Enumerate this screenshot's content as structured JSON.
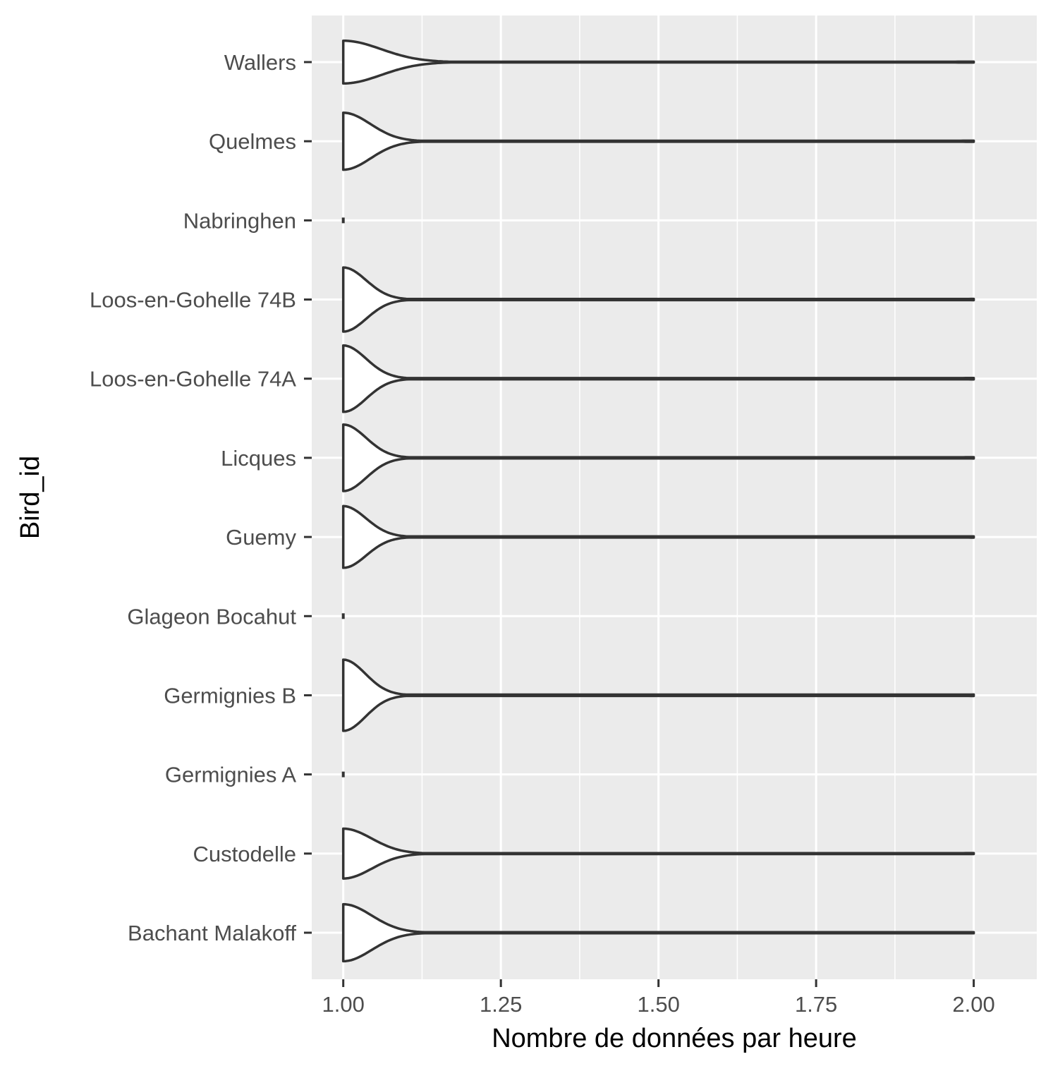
{
  "chart_data": {
    "type": "violin",
    "orientation": "horizontal",
    "xlabel": "Nombre de données par heure",
    "ylabel": "Bird_id",
    "xlim": [
      0.95,
      2.1
    ],
    "x_ticks": [
      1.0,
      1.25,
      1.5,
      1.75,
      2.0
    ],
    "x_tick_labels": [
      "1.00",
      "1.25",
      "1.50",
      "1.75",
      "2.00"
    ],
    "x_minor_ticks": [
      1.125,
      1.375,
      1.625,
      1.875
    ],
    "grid": true,
    "legend": "none",
    "panel_background": "#ebebeb",
    "outline_color": "#333333",
    "fill_color": "#ffffff",
    "categories": [
      "Bachant Malakoff",
      "Custodelle",
      "Germignies A",
      "Germignies B",
      "Glageon Bocahut",
      "Guemy",
      "Licques",
      "Loos-en-Gohelle 74A",
      "Loos-en-Gohelle 74B",
      "Nabringhen",
      "Quelmes",
      "Wallers"
    ],
    "violins": [
      {
        "category": "Bachant Malakoff",
        "min": 1.0,
        "max": 2.0,
        "width": 0.72,
        "decay": 0.045
      },
      {
        "category": "Custodelle",
        "min": 1.0,
        "max": 2.0,
        "width": 0.63,
        "decay": 0.045
      },
      {
        "category": "Germignies A",
        "min": 1.0,
        "max": 1.0,
        "width": 0.0,
        "decay": 0.0
      },
      {
        "category": "Germignies B",
        "min": 1.0,
        "max": 2.0,
        "width": 0.9,
        "decay": 0.035
      },
      {
        "category": "Glageon Bocahut",
        "min": 1.0,
        "max": 1.0,
        "width": 0.0,
        "decay": 0.0
      },
      {
        "category": "Guemy",
        "min": 1.0,
        "max": 2.0,
        "width": 0.78,
        "decay": 0.036
      },
      {
        "category": "Licques",
        "min": 1.0,
        "max": 2.0,
        "width": 0.84,
        "decay": 0.036
      },
      {
        "category": "Loos-en-Gohelle 74A",
        "min": 1.0,
        "max": 2.0,
        "width": 0.84,
        "decay": 0.036
      },
      {
        "category": "Loos-en-Gohelle 74B",
        "min": 1.0,
        "max": 2.0,
        "width": 0.81,
        "decay": 0.036
      },
      {
        "category": "Nabringhen",
        "min": 1.0,
        "max": 1.0,
        "width": 0.0,
        "decay": 0.0
      },
      {
        "category": "Quelmes",
        "min": 1.0,
        "max": 2.0,
        "width": 0.72,
        "decay": 0.043
      },
      {
        "category": "Wallers",
        "min": 1.0,
        "max": 2.0,
        "width": 0.54,
        "decay": 0.06
      }
    ]
  }
}
